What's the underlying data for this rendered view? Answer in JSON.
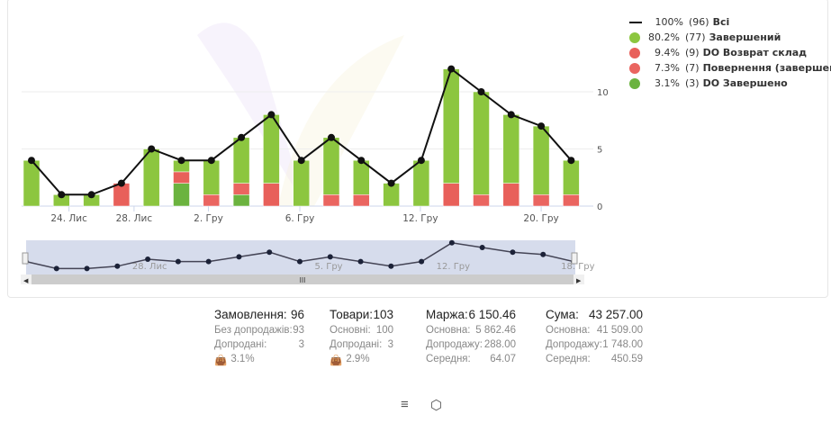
{
  "chart_data": {
    "type": "bar",
    "stacked": true,
    "categories": [
      "",
      "",
      "",
      "",
      "",
      "",
      "",
      "",
      "",
      "",
      "",
      "",
      "",
      "",
      "",
      "",
      "",
      "",
      ""
    ],
    "x_tick_labels": [
      "24. Лис",
      "28. Лис",
      "2. Гру",
      "6. Гру",
      "12. Гру",
      "20. Гру"
    ],
    "y_ticks": [
      0,
      5,
      10
    ],
    "ylim": [
      0,
      13
    ],
    "grid": true,
    "legend_position": "right",
    "series": [
      {
        "name": "Завершений",
        "color": "#8cc63f",
        "values": [
          4,
          1,
          1,
          0,
          5,
          1,
          3,
          4,
          6,
          4,
          5,
          3,
          2,
          4,
          10,
          9,
          6,
          6,
          3
        ]
      },
      {
        "name": "DO Возврат склад",
        "color": "#e8605a",
        "values": [
          0,
          0,
          0,
          2,
          0,
          1,
          0,
          0,
          2,
          0,
          0,
          0,
          0,
          0,
          2,
          0,
          2,
          0,
          0
        ]
      },
      {
        "name": "Повернення (завершений)",
        "color": "#ea6560",
        "values": [
          0,
          0,
          0,
          0,
          0,
          0,
          1,
          1,
          0,
          0,
          1,
          1,
          0,
          0,
          0,
          1,
          0,
          1,
          1
        ]
      },
      {
        "name": "DO Завершено",
        "color": "#6bb33f",
        "values": [
          0,
          0,
          0,
          0,
          0,
          2,
          0,
          1,
          0,
          0,
          0,
          0,
          0,
          0,
          0,
          0,
          0,
          0,
          0
        ]
      },
      {
        "name": "Всі",
        "color": "#111111",
        "type": "line",
        "values": [
          4,
          1,
          1,
          2,
          5,
          4,
          4,
          6,
          8,
          4,
          6,
          4,
          2,
          4,
          12,
          10,
          8,
          7,
          4
        ]
      }
    ],
    "navigator_tick_labels": [
      "28. Лис",
      "5. Гру",
      "12. Гру",
      "18. Гру"
    ]
  },
  "legend": [
    {
      "pct": "100%",
      "count": "(96)",
      "name": "Всі",
      "color": "#111111",
      "shape": "line"
    },
    {
      "pct": "80.2%",
      "count": "(77)",
      "name": "Завершений",
      "color": "#8cc63f",
      "shape": "circle"
    },
    {
      "pct": "9.4%",
      "count": "(9)",
      "name": "DO Возврат склад",
      "color": "#e8605a",
      "shape": "circle"
    },
    {
      "pct": "7.3%",
      "count": "(7)",
      "name": "Повернення (завершений)",
      "color": "#ea6560",
      "shape": "circle"
    },
    {
      "pct": "3.1%",
      "count": "(3)",
      "name": "DO Завершено",
      "color": "#6bb33f",
      "shape": "circle"
    }
  ],
  "stats": {
    "orders": {
      "label": "Замовлення:",
      "value": "96",
      "rows": [
        [
          "Без допродажів:",
          "93"
        ],
        [
          "Допродані:",
          "3"
        ]
      ],
      "rate": "3.1%"
    },
    "goods": {
      "label": "Товари:",
      "value": "103",
      "rows": [
        [
          "Основні:",
          "100"
        ],
        [
          "Допродані:",
          "3"
        ]
      ],
      "rate": "2.9%"
    },
    "margin": {
      "label": "Маржа:",
      "value": "6 150.46",
      "rows": [
        [
          "Основна:",
          "5 862.46"
        ],
        [
          "Допродажу:",
          "288.00"
        ],
        [
          "Середня:",
          "64.07"
        ]
      ]
    },
    "sum": {
      "label": "Сума:",
      "value": "43 257.00",
      "rows": [
        [
          "Основна:",
          "41 509.00"
        ],
        [
          "Допродажу:",
          "1 748.00"
        ],
        [
          "Середня:",
          "450.59"
        ]
      ]
    }
  },
  "icons": {
    "list": "list-sort-icon",
    "box": "box-icon",
    "bag": "bag-percent-icon"
  }
}
